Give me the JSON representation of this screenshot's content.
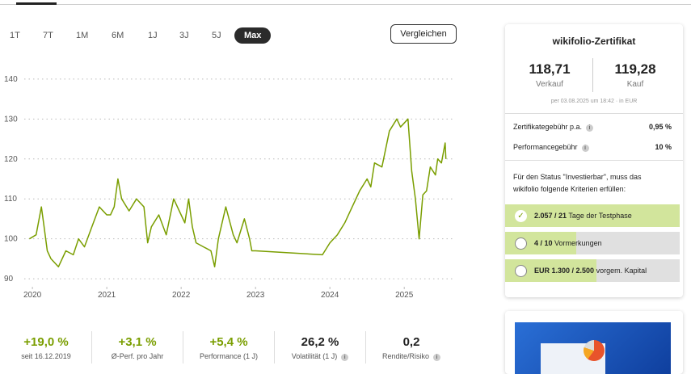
{
  "tabs": [
    "1T",
    "7T",
    "1M",
    "6M",
    "1J",
    "3J",
    "5J",
    "Max"
  ],
  "compare_button": "Vergleichen",
  "chart_data": {
    "type": "line",
    "color": "#7a9e00",
    "grid": true,
    "xlim": [
      2019.89,
      2025.65
    ],
    "xticks": [
      2020,
      2021,
      2022,
      2023,
      2024,
      2025
    ],
    "ylim": [
      88,
      142
    ],
    "yticks": [
      90,
      100,
      110,
      120,
      130,
      140
    ],
    "x": [
      2019.96,
      2020.05,
      2020.12,
      2020.15,
      2020.2,
      2020.25,
      2020.35,
      2020.45,
      2020.55,
      2020.62,
      2020.7,
      2020.8,
      2020.9,
      2021.0,
      2021.05,
      2021.1,
      2021.15,
      2021.2,
      2021.3,
      2021.4,
      2021.5,
      2021.55,
      2021.6,
      2021.7,
      2021.8,
      2021.9,
      2022.0,
      2022.05,
      2022.1,
      2022.15,
      2022.2,
      2022.3,
      2022.4,
      2022.45,
      2022.5,
      2022.6,
      2022.7,
      2022.75,
      2022.85,
      2022.92,
      2022.95,
      2023.0,
      2023.9,
      2024.0,
      2024.1,
      2024.2,
      2024.3,
      2024.4,
      2024.5,
      2024.55,
      2024.6,
      2024.7,
      2024.8,
      2024.9,
      2024.95,
      2025.0,
      2025.05,
      2025.1,
      2025.15,
      2025.2,
      2025.25,
      2025.3,
      2025.35,
      2025.42,
      2025.45,
      2025.5,
      2025.55,
      2025.56
    ],
    "series": [
      {
        "values": [
          100,
          101,
          108,
          104,
          97,
          95,
          93,
          97,
          96,
          100,
          98,
          103,
          108,
          106,
          106,
          108,
          115,
          110,
          107,
          110,
          108,
          99,
          103,
          106,
          101,
          110,
          106,
          104,
          110,
          103,
          99,
          98,
          97,
          93,
          100,
          108,
          101,
          99,
          105,
          100,
          97,
          97,
          96,
          99,
          101,
          104,
          108,
          112,
          115,
          113,
          119,
          118,
          127,
          130,
          128,
          129,
          130,
          117,
          110,
          100,
          111,
          112,
          118,
          116,
          120,
          119,
          124,
          120
        ]
      }
    ]
  },
  "stats": [
    {
      "value": "+19,0 %",
      "label": "seit 16.12.2019"
    },
    {
      "value": "+3,1 %",
      "label": "Ø-Perf. pro Jahr"
    },
    {
      "value": "+5,4 %",
      "label": "Performance (1 J)"
    },
    {
      "value": "26,2 %",
      "label": "Volatilität (1 J)"
    },
    {
      "value": "0,2",
      "label": "Rendite/Risiko"
    }
  ],
  "certificate": {
    "title": "wikifolio-Zertifikat",
    "sell_price": "118,71",
    "sell_label": "Verkauf",
    "buy_price": "119,28",
    "buy_label": "Kauf",
    "note": "per 03.08.2025 um 18:42 · in EUR",
    "fees": [
      {
        "label": "Zertifikategebühr p.a.",
        "value": "0,95 %"
      },
      {
        "label": "Performancegebühr",
        "value": "10 %"
      }
    ],
    "criteria_text": "Für den Status \"Investierbar\", muss das wikifolio folgende Kriterien erfüllen:",
    "criteria": [
      {
        "bold": "2.057 / 21",
        "text": "Tage der Testphase"
      },
      {
        "bold": "4 / 10",
        "text": "Vormerkungen"
      },
      {
        "bold": "EUR 1.300 / 2.500",
        "text": "vorgem. Kapital"
      }
    ]
  }
}
